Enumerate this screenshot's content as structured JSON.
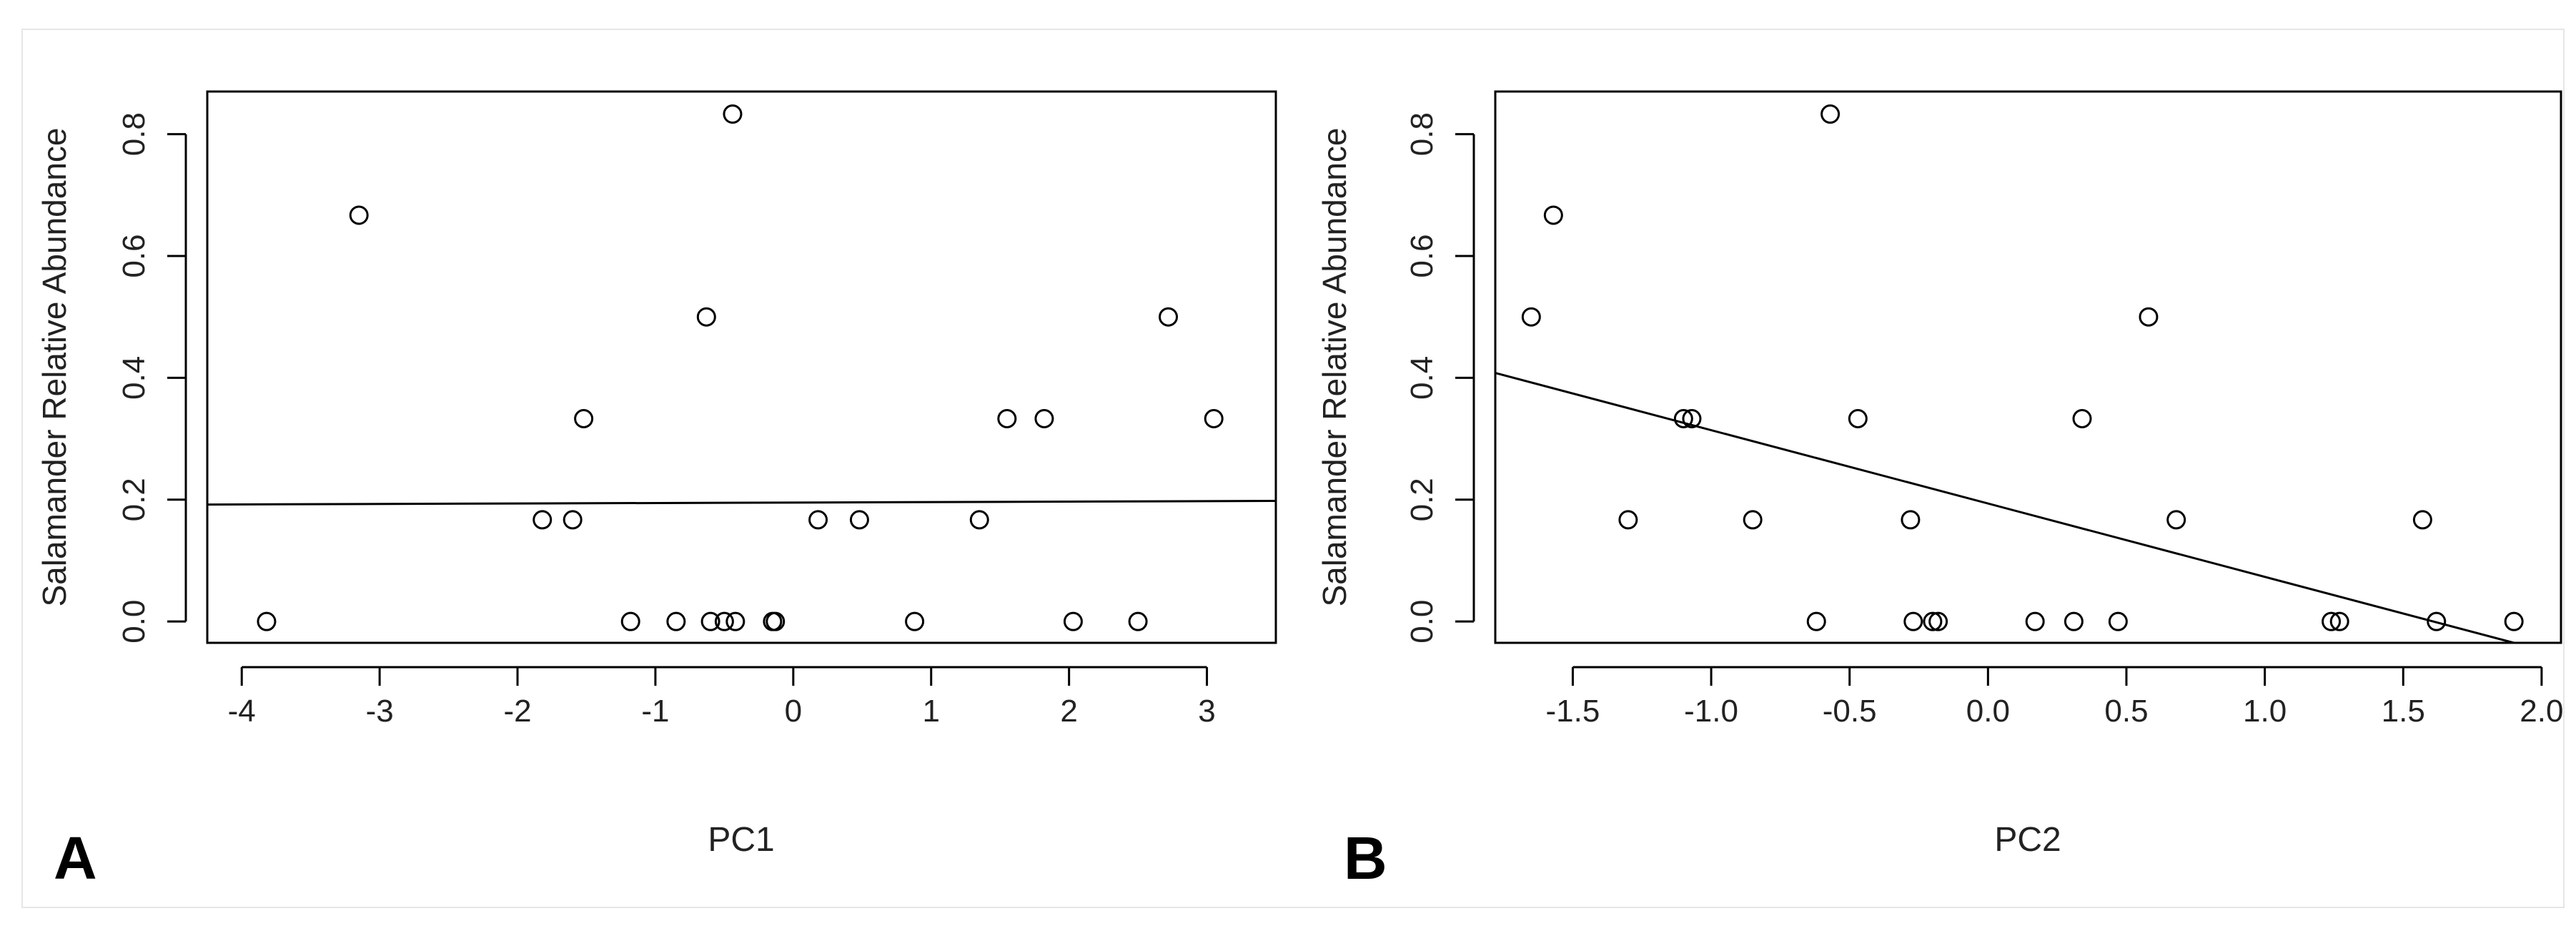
{
  "panels": [
    {
      "letter": "A"
    },
    {
      "letter": "B"
    }
  ],
  "chart_data": [
    {
      "type": "scatter",
      "panel": "A",
      "title": "",
      "xlabel": "PC1",
      "ylabel": "Salamander Relative Abundance",
      "xlim": [
        -4.25,
        3.5
      ],
      "ylim": [
        -0.035,
        0.87
      ],
      "xticks": [
        -4,
        -3,
        -2,
        -1,
        0,
        1,
        2,
        3
      ],
      "xtick_labels": [
        "-4",
        "-3",
        "-2",
        "-1",
        "0",
        "1",
        "2",
        "3"
      ],
      "yticks": [
        0.0,
        0.2,
        0.4,
        0.6,
        0.8
      ],
      "ytick_labels": [
        "0.0",
        "0.2",
        "0.4",
        "0.6",
        "0.8"
      ],
      "grid": false,
      "points": [
        {
          "x": -3.82,
          "y": 0.0
        },
        {
          "x": -3.15,
          "y": 0.667
        },
        {
          "x": -1.82,
          "y": 0.167
        },
        {
          "x": -1.6,
          "y": 0.167
        },
        {
          "x": -1.52,
          "y": 0.333
        },
        {
          "x": -1.18,
          "y": 0.0
        },
        {
          "x": -0.85,
          "y": 0.0
        },
        {
          "x": -0.63,
          "y": 0.5
        },
        {
          "x": -0.6,
          "y": 0.0
        },
        {
          "x": -0.5,
          "y": 0.0
        },
        {
          "x": -0.42,
          "y": 0.0
        },
        {
          "x": -0.44,
          "y": 0.833
        },
        {
          "x": -0.15,
          "y": 0.0
        },
        {
          "x": -0.13,
          "y": 0.0
        },
        {
          "x": 0.18,
          "y": 0.167
        },
        {
          "x": 0.48,
          "y": 0.167
        },
        {
          "x": 0.88,
          "y": 0.0
        },
        {
          "x": 1.35,
          "y": 0.167
        },
        {
          "x": 1.55,
          "y": 0.333
        },
        {
          "x": 1.82,
          "y": 0.333
        },
        {
          "x": 2.03,
          "y": 0.0
        },
        {
          "x": 2.5,
          "y": 0.0
        },
        {
          "x": 2.72,
          "y": 0.5
        },
        {
          "x": 3.05,
          "y": 0.333
        }
      ],
      "fit_line": [
        {
          "x": -4.25,
          "y": 0.192
        },
        {
          "x": 3.5,
          "y": 0.198
        }
      ]
    },
    {
      "type": "scatter",
      "panel": "B",
      "title": "",
      "xlabel": "PC2",
      "ylabel": "Salamander Relative Abundance",
      "xlim": [
        -1.78,
        2.07
      ],
      "ylim": [
        -0.035,
        0.87
      ],
      "xticks": [
        -1.5,
        -1.0,
        -0.5,
        0.0,
        0.5,
        1.0,
        1.5,
        2.0
      ],
      "xtick_labels": [
        "-1.5",
        "-1.0",
        "-0.5",
        "0.0",
        "0.5",
        "1.0",
        "1.5",
        "2.0"
      ],
      "yticks": [
        0.0,
        0.2,
        0.4,
        0.6,
        0.8
      ],
      "ytick_labels": [
        "0.0",
        "0.2",
        "0.4",
        "0.6",
        "0.8"
      ],
      "grid": false,
      "points": [
        {
          "x": -1.65,
          "y": 0.5
        },
        {
          "x": -1.57,
          "y": 0.667
        },
        {
          "x": -1.3,
          "y": 0.167
        },
        {
          "x": -1.1,
          "y": 0.333
        },
        {
          "x": -1.07,
          "y": 0.333
        },
        {
          "x": -0.85,
          "y": 0.167
        },
        {
          "x": -0.62,
          "y": 0.0
        },
        {
          "x": -0.57,
          "y": 0.833
        },
        {
          "x": -0.47,
          "y": 0.333
        },
        {
          "x": -0.28,
          "y": 0.167
        },
        {
          "x": -0.27,
          "y": 0.0
        },
        {
          "x": -0.2,
          "y": 0.0
        },
        {
          "x": -0.18,
          "y": 0.0
        },
        {
          "x": 0.17,
          "y": 0.0
        },
        {
          "x": 0.31,
          "y": 0.0
        },
        {
          "x": 0.34,
          "y": 0.333
        },
        {
          "x": 0.47,
          "y": 0.0
        },
        {
          "x": 0.58,
          "y": 0.5
        },
        {
          "x": 0.68,
          "y": 0.167
        },
        {
          "x": 1.24,
          "y": 0.0
        },
        {
          "x": 1.27,
          "y": 0.0
        },
        {
          "x": 1.57,
          "y": 0.167
        },
        {
          "x": 1.62,
          "y": 0.0
        },
        {
          "x": 1.9,
          "y": 0.0
        }
      ],
      "fit_line": [
        {
          "x": -1.78,
          "y": 0.408
        },
        {
          "x": 1.9,
          "y": -0.035
        }
      ]
    }
  ]
}
